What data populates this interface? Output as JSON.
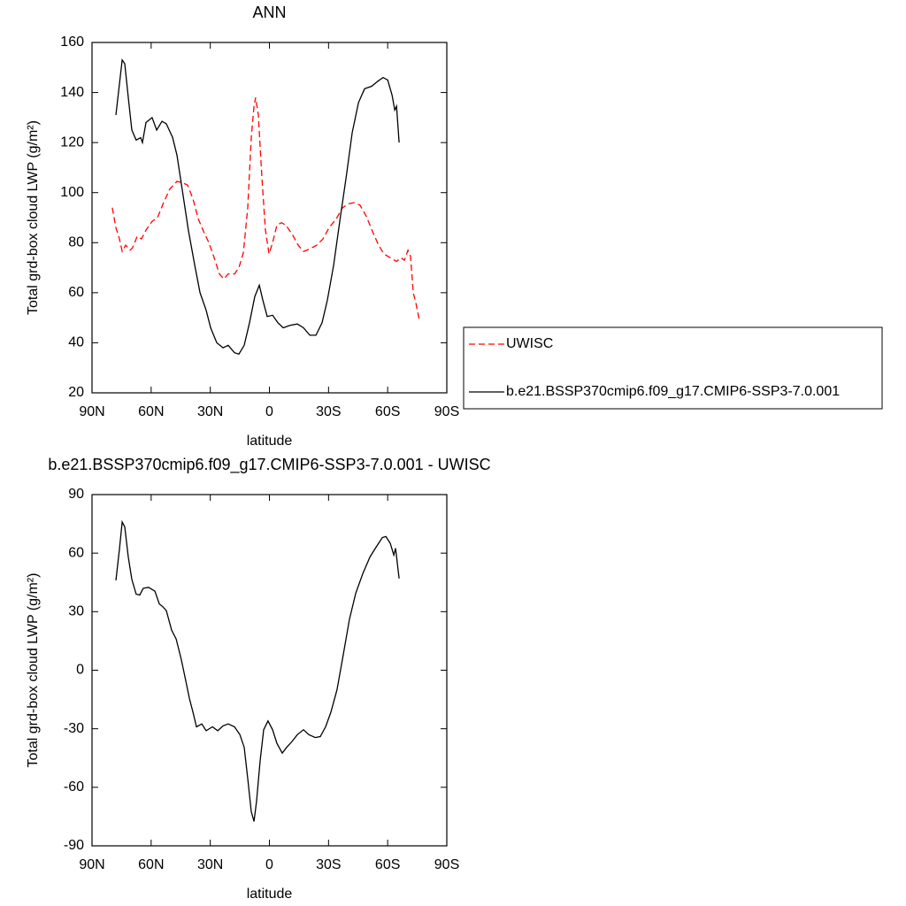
{
  "chart_data": [
    {
      "type": "line",
      "title": "ANN",
      "xlabel": "latitude",
      "ylabel": "Total grd-box cloud LWP (g/m²)",
      "xlim": [
        90,
        -90
      ],
      "ylim": [
        20,
        160
      ],
      "xticks": [
        {
          "value": 90,
          "label": "90N"
        },
        {
          "value": 60,
          "label": "60N"
        },
        {
          "value": 30,
          "label": "30N"
        },
        0,
        {
          "value": -30,
          "label": "30S"
        },
        {
          "value": -60,
          "label": "60S"
        },
        {
          "value": -90,
          "label": "90S"
        }
      ],
      "yticks": [
        20,
        40,
        60,
        80,
        100,
        120,
        140,
        160
      ],
      "legend": "outside-right",
      "series": [
        {
          "name": "UWISC",
          "color": "#ff0000",
          "style": "dashed",
          "x": [
            79.7,
            77.9,
            76.1,
            74.7,
            72.9,
            70.7,
            69.4,
            67.1,
            64.9,
            62.6,
            59.5,
            56.8,
            53.7,
            50.5,
            46.9,
            44.2,
            41.5,
            38.8,
            36.1,
            33.4,
            30.7,
            28.0,
            25.4,
            23.1,
            20.9,
            17.7,
            15.5,
            13.2,
            11.0,
            9.2,
            7.8,
            7.0,
            5.6,
            3.8,
            2.0,
            0.2,
            -1.6,
            -3.8,
            -6.1,
            -8.3,
            -11.5,
            -14.6,
            -17.3,
            -20.5,
            -24.0,
            -27.2,
            -30.3,
            -33.9,
            -37.1,
            -40.2,
            -42.9,
            -46.0,
            -49.2,
            -52.3,
            -55.4,
            -58.1,
            -61.3,
            -64.5,
            -66.7,
            -68.5,
            -70.3,
            -71.6,
            -73.0,
            -74.3,
            -76.1
          ],
          "values": [
            94,
            86,
            81.5,
            76.5,
            79,
            77,
            78,
            82.5,
            81.5,
            85,
            88.5,
            90,
            96,
            101.5,
            104.5,
            104,
            103,
            97.5,
            89.5,
            84.5,
            80,
            74,
            67.5,
            65.5,
            67.5,
            67.5,
            70,
            76,
            94,
            122,
            134.5,
            138,
            131,
            106,
            85,
            75.5,
            80,
            87,
            88,
            87,
            83.5,
            79,
            76.5,
            77.5,
            79,
            81.5,
            86,
            89.5,
            94,
            95.5,
            96,
            95,
            90.5,
            84.5,
            79,
            75.5,
            74,
            72.5,
            74,
            73,
            77,
            74.5,
            60,
            56,
            49
          ]
        },
        {
          "name": "b.e21.BSSP370cmip6.f09_g17.CMIP6-SSP3-7.0.001",
          "color": "#000000",
          "style": "solid",
          "x": [
            77.9,
            74.7,
            73.4,
            71.6,
            69.8,
            67.6,
            65.3,
            64.4,
            62.6,
            59.5,
            57.2,
            54.5,
            52.3,
            49.1,
            46.9,
            43.8,
            41.1,
            37.9,
            35.2,
            32.1,
            29.8,
            26.7,
            23.5,
            20.9,
            17.7,
            15.5,
            12.8,
            10.1,
            7.4,
            5.1,
            3.3,
            1.1,
            -1.6,
            -4.3,
            -7.0,
            -10.6,
            -14.2,
            -17.3,
            -20.5,
            -23.6,
            -26.7,
            -29.4,
            -32.6,
            -35.7,
            -38.9,
            -42.0,
            -45.2,
            -48.3,
            -51.9,
            -55.0,
            -57.7,
            -60.0,
            -62.2,
            -63.6,
            -64.5,
            -65.8
          ],
          "values": [
            131,
            153,
            151.5,
            138,
            125,
            121,
            122,
            120,
            128,
            130,
            125,
            128.5,
            127.5,
            122,
            115,
            99,
            85,
            71,
            60,
            53,
            46,
            40,
            38,
            39,
            36,
            35.5,
            39,
            48,
            58.5,
            63,
            57,
            50.5,
            51,
            48,
            46,
            47,
            47.5,
            46,
            43,
            43,
            48,
            57,
            71,
            88.5,
            106,
            124,
            136,
            141.5,
            142.5,
            144.5,
            146,
            145,
            139,
            133,
            134.5,
            120
          ]
        }
      ]
    },
    {
      "type": "line",
      "title": "b.e21.BSSP370cmip6.f09_g17.CMIP6-SSP3-7.0.001 - UWISC",
      "xlabel": "latitude",
      "ylabel": "Total grd-box cloud LWP (g/m²)",
      "xlim": [
        90,
        -90
      ],
      "ylim": [
        -90,
        90
      ],
      "xticks": [
        {
          "value": 90,
          "label": "90N"
        },
        {
          "value": 60,
          "label": "60N"
        },
        {
          "value": 30,
          "label": "30N"
        },
        0,
        {
          "value": -30,
          "label": "30S"
        },
        {
          "value": -60,
          "label": "60S"
        },
        {
          "value": -90,
          "label": "90S"
        }
      ],
      "yticks": [
        -90,
        -60,
        -30,
        0,
        30,
        60,
        90
      ],
      "series": [
        {
          "color": "#000000",
          "style": "solid",
          "x": [
            77.9,
            76.1,
            74.7,
            73.4,
            71.6,
            69.8,
            67.6,
            65.8,
            64.0,
            61.3,
            58.1,
            55.9,
            54.1,
            52.3,
            49.6,
            47.3,
            44.7,
            42.4,
            40.6,
            38.8,
            37.0,
            34.3,
            32.1,
            28.9,
            26.2,
            23.5,
            20.9,
            17.7,
            15.0,
            12.8,
            11.0,
            9.2,
            7.8,
            6.5,
            4.7,
            2.9,
            0.7,
            -1.6,
            -3.8,
            -6.5,
            -8.8,
            -11.5,
            -14.2,
            -17.3,
            -20.0,
            -23.2,
            -25.8,
            -28.5,
            -31.2,
            -34.3,
            -37.5,
            -40.6,
            -43.8,
            -47.4,
            -51.0,
            -54.1,
            -57.3,
            -59.1,
            -61.3,
            -63.1,
            -64.0,
            -65.8
          ],
          "values": [
            46,
            62,
            76,
            73.5,
            58,
            46.5,
            39,
            38.5,
            42,
            42.5,
            40.5,
            34,
            32.5,
            30.5,
            20.5,
            16,
            5.5,
            -5.5,
            -14.5,
            -21.5,
            -29,
            -27.5,
            -31,
            -29,
            -31,
            -28.5,
            -27.5,
            -29,
            -33,
            -39.5,
            -55.5,
            -72.5,
            -77.5,
            -67,
            -46.5,
            -30.5,
            -26,
            -30.5,
            -37.5,
            -42.5,
            -39.5,
            -36.5,
            -33,
            -30.5,
            -33,
            -34.5,
            -34,
            -29,
            -21.5,
            -10,
            8,
            26,
            39.5,
            49.5,
            58,
            63,
            68,
            68.5,
            65,
            59,
            62.5,
            47
          ]
        }
      ]
    }
  ]
}
